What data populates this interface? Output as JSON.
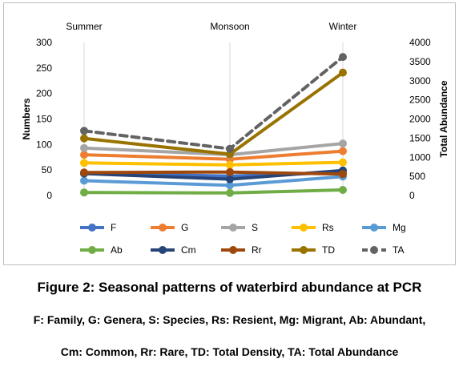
{
  "chart_data": {
    "type": "line",
    "categories": [
      "Summer",
      "Monsoon",
      "Winter"
    ],
    "ylabel": "Numbers",
    "y2label": "Total Abundance",
    "ylim": [
      0,
      300
    ],
    "y2lim": [
      0,
      4000
    ],
    "yticks": [
      "0",
      "50",
      "100",
      "150",
      "200",
      "250",
      "300"
    ],
    "y2ticks": [
      "0",
      "500",
      "1000",
      "1500",
      "2000",
      "2500",
      "3000",
      "3500",
      "4000"
    ],
    "grid": false,
    "legend_position": "bottom",
    "series": [
      {
        "name": "F",
        "axis": "left",
        "color": "#4472c4",
        "dashed": false,
        "values": [
          44,
          38,
          45
        ]
      },
      {
        "name": "G",
        "axis": "left",
        "color": "#ed7d31",
        "dashed": false,
        "values": [
          80,
          71,
          87
        ]
      },
      {
        "name": "S",
        "axis": "left",
        "color": "#a5a5a5",
        "dashed": false,
        "values": [
          93,
          80,
          102
        ]
      },
      {
        "name": "Rs",
        "axis": "left",
        "color": "#ffc000",
        "dashed": false,
        "values": [
          64,
          60,
          65
        ]
      },
      {
        "name": "Mg",
        "axis": "left",
        "color": "#5b9bd5",
        "dashed": false,
        "values": [
          29,
          20,
          37
        ]
      },
      {
        "name": "Ab",
        "axis": "left",
        "color": "#70ad47",
        "dashed": false,
        "values": [
          6,
          5,
          11
        ]
      },
      {
        "name": "Cm",
        "axis": "left",
        "color": "#264478",
        "dashed": false,
        "values": [
          43,
          32,
          49
        ]
      },
      {
        "name": "Rr",
        "axis": "left",
        "color": "#9e480e",
        "dashed": false,
        "values": [
          45,
          46,
          42
        ]
      },
      {
        "name": "TD",
        "axis": "left",
        "color": "#997300",
        "dashed": false,
        "values": [
          112,
          81,
          241
        ]
      },
      {
        "name": "TA",
        "axis": "right",
        "color": "#636363",
        "dashed": true,
        "values": [
          1690,
          1220,
          3620
        ]
      }
    ]
  },
  "caption": {
    "title": "Figure 2: Seasonal patterns of waterbird abundance at PCR",
    "line1": "F: Family, G: Genera, S: Species, Rs: Resient, Mg: Migrant, Ab: Abundant,",
    "line2": "Cm: Common, Rr: Rare, TD: Total Density, TA: Total Abundance"
  }
}
